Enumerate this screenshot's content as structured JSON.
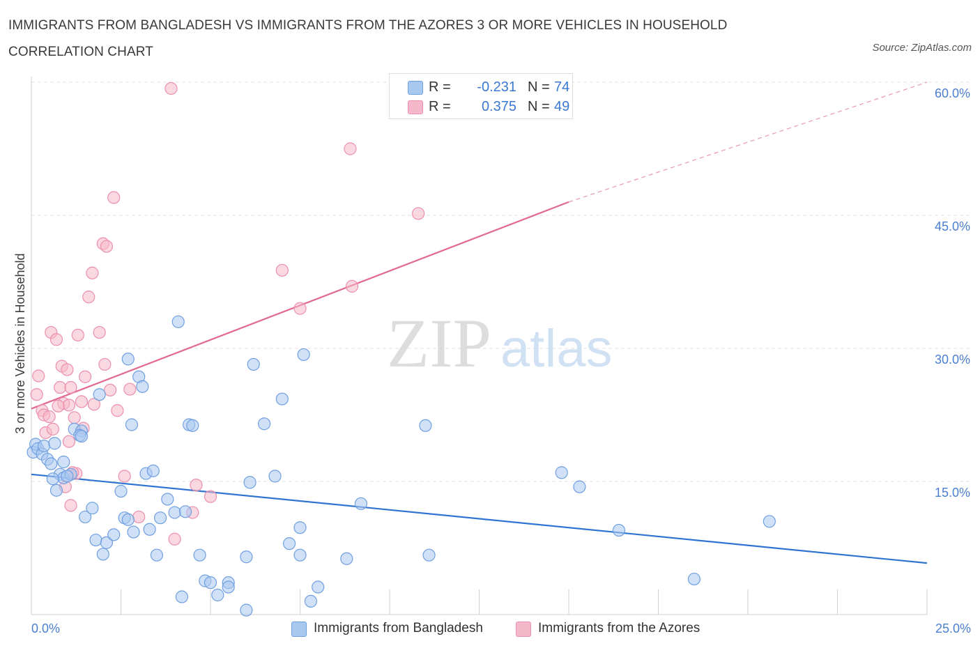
{
  "title": "IMMIGRANTS FROM BANGLADESH VS IMMIGRANTS FROM THE AZORES 3 OR MORE VEHICLES IN HOUSEHOLD CORRELATION CHART",
  "source": "Source: ZipAtlas.com",
  "watermark": {
    "zip": "ZIP",
    "atlas": "atlas"
  },
  "colors": {
    "blue_fill": "#a9c8f0",
    "blue_stroke": "#6f9fe0",
    "blue_line": "#2f74d0",
    "pink_fill": "#f5b8cb",
    "pink_stroke": "#eb8fac",
    "pink_line": "#e0698f",
    "accent_text": "#3a78d4",
    "grid": "#e2e2e2"
  },
  "legend": {
    "rows": [
      {
        "r_label": "R =",
        "r_value": "-0.231",
        "n_label": "N =",
        "n_value": "74",
        "color": "#a9c8f0",
        "border": "#6f9fe0"
      },
      {
        "r_label": "R =",
        "r_value": "0.375",
        "n_label": "N =",
        "n_value": "49",
        "color": "#f5b8cb",
        "border": "#eb8fac"
      }
    ]
  },
  "bottom_legend": [
    {
      "label": "Immigrants from Bangladesh",
      "color": "#a9c8f0",
      "border": "#6f9fe0"
    },
    {
      "label": "Immigrants from the Azores",
      "color": "#f5b8cb",
      "border": "#eb8fac"
    }
  ],
  "chart_data": {
    "type": "scatter",
    "ylabel": "3 or more Vehicles in Household",
    "xlim": [
      0,
      25
    ],
    "ylim": [
      0,
      60
    ],
    "x_tick_labels": [
      "0.0%",
      "25.0%"
    ],
    "y_ticks": [
      15,
      30,
      45,
      60
    ],
    "y_tick_labels": [
      "15.0%",
      "30.0%",
      "45.0%",
      "60.0%"
    ],
    "grid": true,
    "series": [
      {
        "name": "Immigrants from Bangladesh",
        "color": "#a9c8f0",
        "trend": {
          "x": [
            0,
            25
          ],
          "y": [
            15.8,
            5.8
          ]
        },
        "points": [
          [
            0.05,
            18.3
          ],
          [
            0.12,
            19.2
          ],
          [
            0.18,
            18.7
          ],
          [
            0.3,
            18.1
          ],
          [
            0.35,
            19.0
          ],
          [
            0.45,
            17.5
          ],
          [
            0.55,
            17.0
          ],
          [
            0.65,
            19.3
          ],
          [
            0.9,
            17.2
          ],
          [
            0.7,
            14.0
          ],
          [
            0.8,
            15.8
          ],
          [
            0.9,
            15.4
          ],
          [
            1.1,
            15.8
          ],
          [
            1.2,
            20.9
          ],
          [
            1.4,
            20.7
          ],
          [
            1.35,
            20.2
          ],
          [
            1.5,
            11.0
          ],
          [
            1.7,
            12.0
          ],
          [
            1.8,
            8.4
          ],
          [
            1.9,
            24.8
          ],
          [
            2.0,
            6.8
          ],
          [
            2.1,
            8.1
          ],
          [
            2.3,
            9.0
          ],
          [
            2.5,
            13.9
          ],
          [
            2.6,
            10.9
          ],
          [
            2.7,
            10.7
          ],
          [
            2.8,
            21.4
          ],
          [
            2.85,
            9.3
          ],
          [
            3.0,
            26.8
          ],
          [
            3.1,
            25.7
          ],
          [
            3.2,
            15.9
          ],
          [
            3.3,
            9.6
          ],
          [
            3.4,
            16.2
          ],
          [
            3.5,
            6.7
          ],
          [
            3.6,
            10.9
          ],
          [
            3.8,
            13.0
          ],
          [
            4.0,
            11.5
          ],
          [
            4.1,
            33.0
          ],
          [
            4.2,
            2.0
          ],
          [
            4.3,
            11.6
          ],
          [
            4.4,
            21.4
          ],
          [
            4.5,
            21.3
          ],
          [
            4.7,
            6.7
          ],
          [
            4.85,
            3.8
          ],
          [
            5.0,
            3.6
          ],
          [
            5.2,
            2.2
          ],
          [
            5.5,
            3.6
          ],
          [
            5.5,
            3.1
          ],
          [
            6.0,
            0.5
          ],
          [
            6.0,
            6.5
          ],
          [
            6.1,
            14.9
          ],
          [
            6.2,
            28.2
          ],
          [
            6.5,
            21.5
          ],
          [
            6.8,
            15.6
          ],
          [
            7.0,
            24.3
          ],
          [
            7.2,
            8.0
          ],
          [
            7.5,
            9.8
          ],
          [
            7.5,
            6.7
          ],
          [
            7.6,
            29.3
          ],
          [
            7.8,
            1.5
          ],
          [
            8.0,
            3.1
          ],
          [
            8.8,
            6.3
          ],
          [
            9.2,
            12.5
          ],
          [
            11.0,
            21.3
          ],
          [
            11.1,
            6.7
          ],
          [
            14.8,
            16.0
          ],
          [
            15.3,
            14.4
          ],
          [
            16.4,
            9.5
          ],
          [
            18.5,
            4.0
          ],
          [
            20.6,
            10.5
          ],
          [
            1.4,
            20.1
          ],
          [
            1.0,
            15.6
          ],
          [
            0.6,
            15.3
          ],
          [
            2.7,
            28.8
          ]
        ]
      },
      {
        "name": "Immigrants from the Azores",
        "color": "#f5b8cb",
        "trend": {
          "x": [
            0,
            15
          ],
          "y": [
            23.2,
            46.5
          ]
        },
        "trend_ext": {
          "x": [
            15,
            25
          ],
          "y": [
            46.5,
            60.0
          ]
        },
        "points": [
          [
            0.2,
            26.9
          ],
          [
            0.3,
            23.0
          ],
          [
            0.35,
            22.5
          ],
          [
            0.4,
            20.5
          ],
          [
            0.5,
            22.3
          ],
          [
            0.55,
            31.8
          ],
          [
            0.7,
            31.0
          ],
          [
            0.8,
            25.6
          ],
          [
            0.85,
            28.0
          ],
          [
            0.9,
            23.8
          ],
          [
            1.0,
            27.6
          ],
          [
            1.05,
            23.6
          ],
          [
            1.1,
            25.6
          ],
          [
            1.2,
            22.2
          ],
          [
            1.3,
            31.5
          ],
          [
            1.4,
            24.0
          ],
          [
            1.45,
            21.0
          ],
          [
            1.5,
            26.8
          ],
          [
            1.6,
            35.8
          ],
          [
            1.7,
            38.5
          ],
          [
            1.75,
            23.7
          ],
          [
            1.9,
            31.8
          ],
          [
            2.0,
            41.8
          ],
          [
            2.05,
            28.2
          ],
          [
            2.1,
            41.5
          ],
          [
            2.2,
            25.3
          ],
          [
            2.3,
            47.0
          ],
          [
            2.4,
            23.0
          ],
          [
            2.6,
            15.6
          ],
          [
            2.75,
            25.4
          ],
          [
            3.0,
            11.0
          ],
          [
            4.0,
            8.5
          ],
          [
            4.5,
            11.5
          ],
          [
            4.6,
            14.6
          ],
          [
            5.0,
            13.3
          ],
          [
            7.0,
            38.8
          ],
          [
            7.5,
            34.5
          ],
          [
            8.9,
            52.5
          ],
          [
            8.95,
            37.0
          ],
          [
            10.8,
            45.2
          ],
          [
            3.9,
            59.3
          ],
          [
            0.15,
            24.8
          ],
          [
            0.6,
            20.9
          ],
          [
            0.75,
            23.5
          ],
          [
            1.05,
            19.5
          ],
          [
            1.25,
            15.9
          ],
          [
            1.1,
            12.3
          ],
          [
            0.95,
            14.4
          ],
          [
            1.15,
            16.0
          ]
        ]
      }
    ]
  }
}
